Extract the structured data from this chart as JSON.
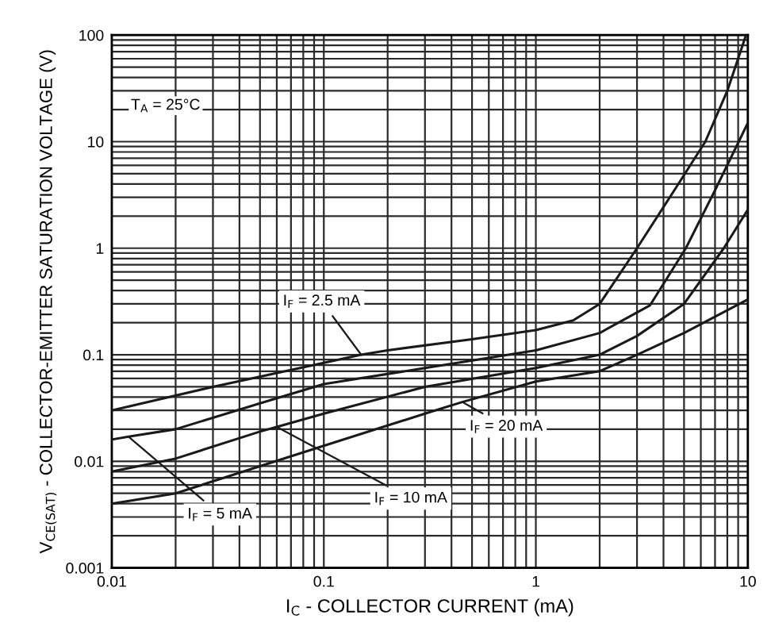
{
  "chart_data": {
    "type": "line",
    "xlabel": "I$_{C}$ - COLLECTOR CURRENT (mA)",
    "ylabel": "V$_{CE(SAT)}$ - COLLECTOR-EMITTER SATURATION VOLTAGE (V)",
    "log": "xy",
    "grid": true,
    "marker": "none",
    "line_style": "solid",
    "xlim": [
      0.01,
      10
    ],
    "ylim": [
      0.001,
      100
    ],
    "xticks": [
      0.01,
      0.1,
      1,
      10
    ],
    "yticks": [
      0.001,
      0.01,
      0.1,
      1,
      10,
      100
    ],
    "annotations": [
      "T$_{A}$ = 25°C"
    ],
    "series": [
      {
        "name": "I$_{F}$ = 2.5 mA",
        "color": "#1a1a1a",
        "x": [
          0.01,
          0.03,
          0.1,
          0.15,
          0.2,
          0.5,
          1,
          1.5,
          2,
          3,
          4.5,
          6.3,
          8,
          9.8
        ],
        "values": [
          0.03,
          0.05,
          0.084,
          0.1,
          0.11,
          0.14,
          0.17,
          0.21,
          0.3,
          1,
          3.5,
          10,
          30,
          100
        ]
      },
      {
        "name": "I$_{F}$ = 5 mA",
        "color": "#1a1a1a",
        "x": [
          0.01,
          0.012,
          0.02,
          0.05,
          0.1,
          0.3,
          1,
          2,
          3.45,
          5.1,
          7,
          10
        ],
        "values": [
          0.016,
          0.017,
          0.02,
          0.035,
          0.053,
          0.075,
          0.11,
          0.16,
          0.29,
          1,
          3.5,
          15
        ]
      },
      {
        "name": "I$_{F}$ = 10 mA",
        "color": "#1a1a1a",
        "x": [
          0.01,
          0.02,
          0.05,
          0.06,
          0.1,
          0.3,
          1,
          2,
          3,
          5,
          7.7,
          10
        ],
        "values": [
          0.008,
          0.0106,
          0.019,
          0.021,
          0.028,
          0.05,
          0.075,
          0.1,
          0.15,
          0.3,
          1,
          2.3
        ]
      },
      {
        "name": "I$_{F}$ = 20 mA",
        "color": "#1a1a1a",
        "x": [
          0.01,
          0.02,
          0.05,
          0.1,
          0.3,
          0.45,
          1,
          2,
          3,
          5,
          10
        ],
        "values": [
          0.004,
          0.005,
          0.009,
          0.014,
          0.028,
          0.036,
          0.056,
          0.07,
          0.1,
          0.16,
          0.33
        ]
      }
    ]
  }
}
